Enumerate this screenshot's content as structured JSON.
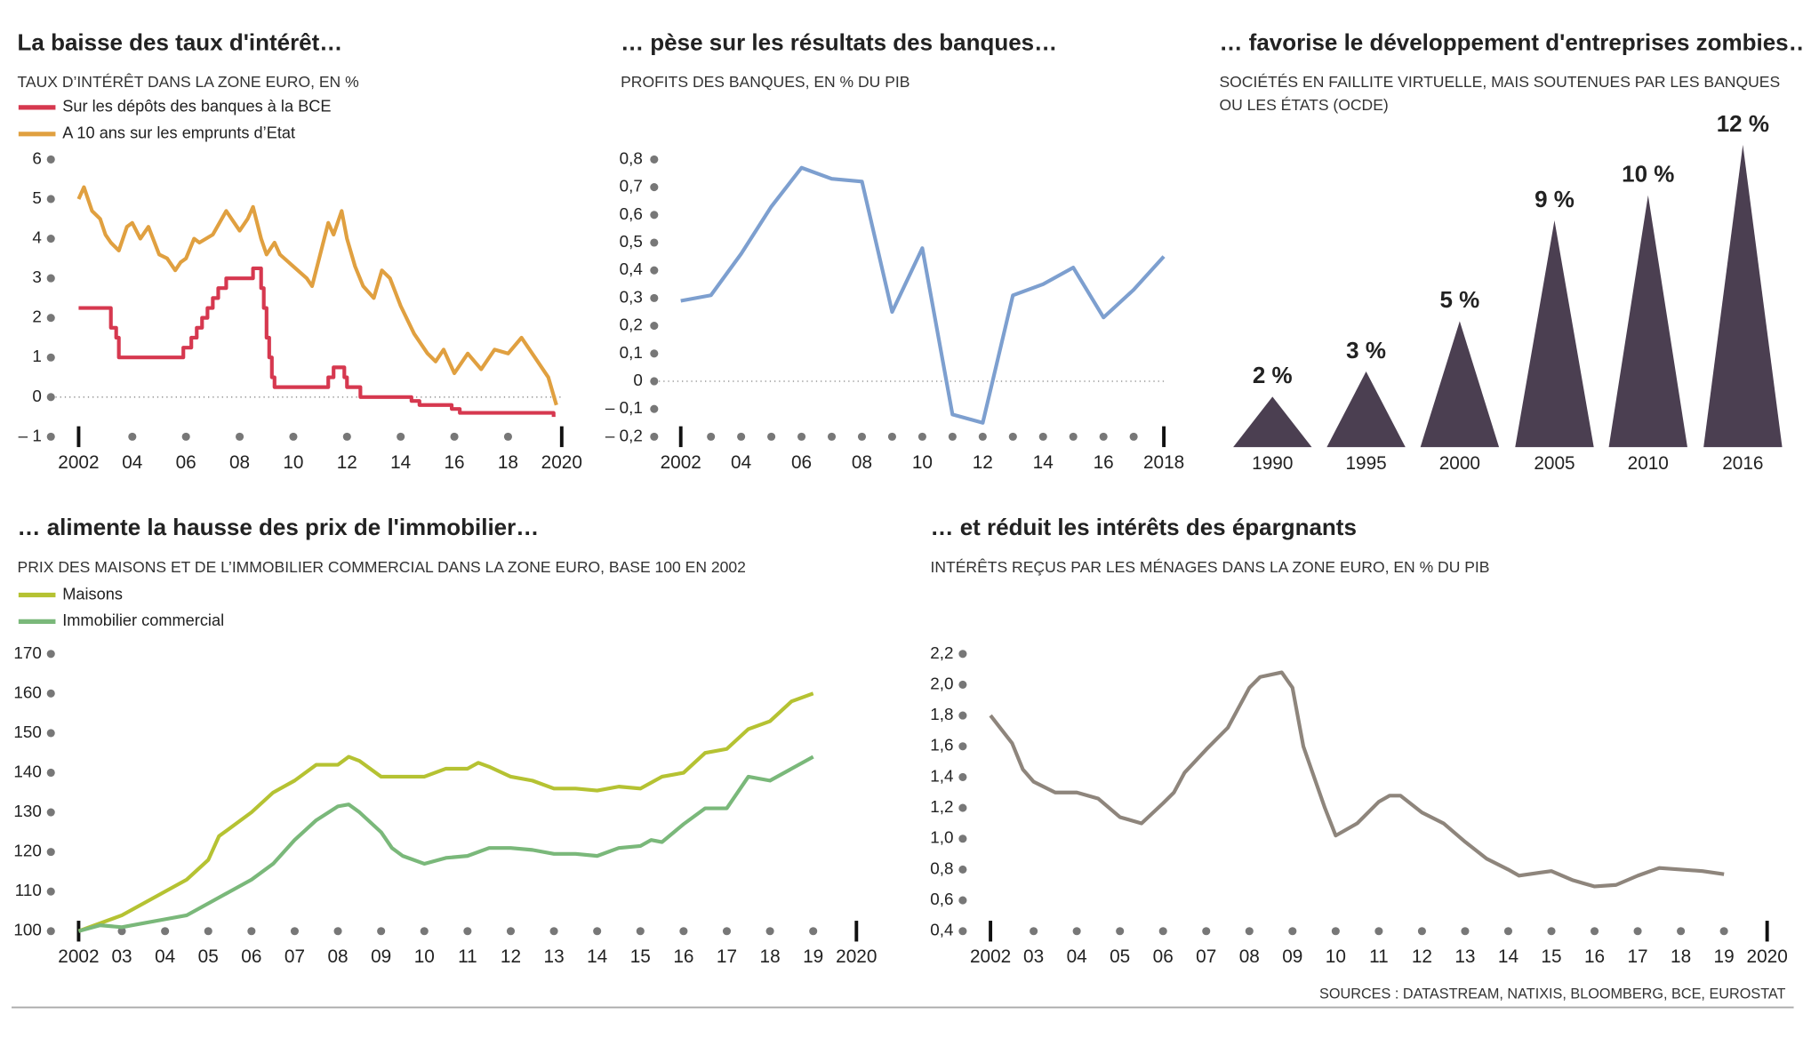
{
  "chart_data": [
    {
      "type": "line",
      "title": "La baisse des taux d'intérêt…",
      "subtitle": [
        "TAUX D’INTÉRÊT DANS LA ZONE EURO, EN %"
      ],
      "xlim": [
        2002,
        2020
      ],
      "ylim": [
        -1,
        6
      ],
      "zero_line": true,
      "xticks": [
        2002,
        {
          "value": 2004,
          "label": "04"
        },
        {
          "value": 2006,
          "label": "06"
        },
        {
          "value": 2008,
          "label": "08"
        },
        {
          "value": 2010,
          "label": "10"
        },
        {
          "value": 2012,
          "label": "12"
        },
        {
          "value": 2014,
          "label": "14"
        },
        {
          "value": 2016,
          "label": "16"
        },
        {
          "value": 2018,
          "label": "18"
        },
        2020
      ],
      "yticks": [
        {
          "value": -1,
          "label": "– 1"
        },
        0,
        1,
        2,
        3,
        4,
        5,
        6
      ],
      "series": [
        {
          "name": "Sur les dépôts des banques à la BCE",
          "color": "#d6384f",
          "x": [
            2002,
            2003,
            2003.2,
            2003.2,
            2003.4,
            2003.4,
            2003.5,
            2003.5,
            2005.9,
            2005.9,
            2006.2,
            2006.2,
            2006.4,
            2006.4,
            2006.6,
            2006.6,
            2006.8,
            2006.8,
            2007,
            2007,
            2007.2,
            2007.2,
            2007.5,
            2007.5,
            2008.5,
            2008.5,
            2008.8,
            2008.8,
            2008.9,
            2008.9,
            2009,
            2009,
            2009.1,
            2009.1,
            2009.2,
            2009.2,
            2009.3,
            2009.3,
            2011.3,
            2011.3,
            2011.5,
            2011.5,
            2011.9,
            2011.9,
            2012,
            2012,
            2012.5,
            2012.5,
            2014.4,
            2014.4,
            2014.7,
            2014.7,
            2015.9,
            2015.9,
            2016.2,
            2016.2,
            2019.7,
            2019.7
          ],
          "values": [
            2.25,
            2.25,
            2.25,
            1.75,
            1.75,
            1.5,
            1.5,
            1,
            1,
            1.25,
            1.25,
            1.5,
            1.5,
            1.75,
            1.75,
            2,
            2,
            2.25,
            2.25,
            2.5,
            2.5,
            2.75,
            2.75,
            3,
            3,
            3.25,
            3.25,
            2.75,
            2.75,
            2.25,
            2.25,
            1.5,
            1.5,
            1,
            1,
            0.5,
            0.5,
            0.25,
            0.25,
            0.5,
            0.5,
            0.75,
            0.75,
            0.5,
            0.5,
            0.25,
            0.25,
            0,
            0,
            -0.1,
            -0.1,
            -0.2,
            -0.2,
            -0.3,
            -0.3,
            -0.4,
            -0.4,
            -0.5
          ]
        },
        {
          "name": "A 10 ans sur les emprunts d’Etat",
          "color": "#e0a040",
          "x": [
            2002,
            2002.2,
            2002.5,
            2002.8,
            2003,
            2003.2,
            2003.5,
            2003.8,
            2004,
            2004.3,
            2004.6,
            2005,
            2005.3,
            2005.6,
            2005.8,
            2006,
            2006.3,
            2006.5,
            2007,
            2007.5,
            2008,
            2008.3,
            2008.5,
            2008.8,
            2009,
            2009.3,
            2009.5,
            2010,
            2010.5,
            2010.7,
            2011,
            2011.3,
            2011.5,
            2011.8,
            2012,
            2012.3,
            2012.6,
            2013,
            2013.3,
            2013.6,
            2014,
            2014.5,
            2015,
            2015.3,
            2015.6,
            2016,
            2016.5,
            2017,
            2017.5,
            2018,
            2018.5,
            2019,
            2019.5,
            2019.8
          ],
          "values": [
            5.0,
            5.3,
            4.7,
            4.5,
            4.1,
            3.9,
            3.7,
            4.3,
            4.4,
            4.0,
            4.3,
            3.6,
            3.5,
            3.2,
            3.4,
            3.5,
            4.0,
            3.9,
            4.1,
            4.7,
            4.2,
            4.5,
            4.8,
            4.0,
            3.6,
            3.9,
            3.6,
            3.3,
            3.0,
            2.8,
            3.6,
            4.4,
            4.1,
            4.7,
            4.0,
            3.3,
            2.8,
            2.5,
            3.2,
            3.0,
            2.3,
            1.6,
            1.1,
            0.9,
            1.2,
            0.6,
            1.1,
            0.7,
            1.2,
            1.1,
            1.5,
            1.0,
            0.5,
            -0.2
          ]
        }
      ]
    },
    {
      "type": "line",
      "title": "… pèse sur les résultats des banques…",
      "subtitle": [
        "PROFITS DES BANQUES, EN % DU PIB"
      ],
      "xlim": [
        2002,
        2018
      ],
      "ylim": [
        -0.2,
        0.8
      ],
      "zero_line": true,
      "xticks": [
        2002,
        {
          "value": 2004,
          "label": "04"
        },
        {
          "value": 2006,
          "label": "06"
        },
        {
          "value": 2008,
          "label": "08"
        },
        {
          "value": 2010,
          "label": "10"
        },
        {
          "value": 2012,
          "label": "12"
        },
        {
          "value": 2014,
          "label": "14"
        },
        {
          "value": 2016,
          "label": "16"
        },
        2018
      ],
      "xminorticks": [
        2003,
        2005,
        2007,
        2009,
        2011,
        2013,
        2015,
        2017
      ],
      "yticks": [
        {
          "value": -0.2,
          "label": "– 0,2"
        },
        {
          "value": -0.1,
          "label": "– 0,1"
        },
        0,
        {
          "value": 0.1,
          "label": "0,1"
        },
        {
          "value": 0.2,
          "label": "0,2"
        },
        {
          "value": 0.3,
          "label": "0,3"
        },
        {
          "value": 0.4,
          "label": "0,4"
        },
        {
          "value": 0.5,
          "label": "0,5"
        },
        {
          "value": 0.6,
          "label": "0,6"
        },
        {
          "value": 0.7,
          "label": "0,7"
        },
        {
          "value": 0.8,
          "label": "0,8"
        }
      ],
      "series": [
        {
          "name": null,
          "color": "#7d9fcf",
          "x": [
            2002,
            2003,
            2004,
            2005,
            2006,
            2007,
            2008,
            2009,
            2010,
            2011,
            2012,
            2013,
            2014,
            2015,
            2016,
            2017,
            2018
          ],
          "values": [
            0.29,
            0.31,
            0.46,
            0.63,
            0.77,
            0.73,
            0.72,
            0.25,
            0.48,
            -0.12,
            -0.15,
            0.31,
            0.35,
            0.41,
            0.23,
            0.33,
            0.45
          ]
        }
      ]
    },
    {
      "type": "triangle",
      "title": "… favorise le développement d'entreprises zombies…",
      "subtitle": [
        "SOCIÉTÉS EN FAILLITE VIRTUELLE, MAIS SOUTENUES PAR LES BANQUES",
        "OU LES ÉTATS (OCDE)"
      ],
      "categories": [
        "1990",
        "1995",
        "2000",
        "2005",
        "2010",
        "2016"
      ],
      "values": [
        2,
        3,
        5,
        9,
        10,
        12
      ],
      "value_labels": [
        "2 %",
        "3 %",
        "5 %",
        "9 %",
        "10 %",
        "12 %"
      ],
      "color": "#4b3f51"
    },
    {
      "type": "line",
      "title": "… alimente la hausse des prix de l'immobilier…",
      "subtitle": [
        "PRIX DES MAISONS ET DE L’IMMOBILIER COMMERCIAL DANS LA ZONE EURO, BASE 100 EN 2002"
      ],
      "xlim": [
        2002,
        2020
      ],
      "ylim": [
        100,
        170
      ],
      "xticks": [
        2002,
        {
          "value": 2003,
          "label": "03"
        },
        {
          "value": 2004,
          "label": "04"
        },
        {
          "value": 2005,
          "label": "05"
        },
        {
          "value": 2006,
          "label": "06"
        },
        {
          "value": 2007,
          "label": "07"
        },
        {
          "value": 2008,
          "label": "08"
        },
        {
          "value": 2009,
          "label": "09"
        },
        {
          "value": 2010,
          "label": "10"
        },
        {
          "value": 2011,
          "label": "11"
        },
        {
          "value": 2012,
          "label": "12"
        },
        {
          "value": 2013,
          "label": "13"
        },
        {
          "value": 2014,
          "label": "14"
        },
        {
          "value": 2015,
          "label": "15"
        },
        {
          "value": 2016,
          "label": "16"
        },
        {
          "value": 2017,
          "label": "17"
        },
        {
          "value": 2018,
          "label": "18"
        },
        {
          "value": 2019,
          "label": "19"
        },
        2020
      ],
      "yticks": [
        100,
        110,
        120,
        130,
        140,
        150,
        160,
        170
      ],
      "series": [
        {
          "name": "Maisons",
          "color": "#b5c232",
          "x": [
            2002,
            2002.5,
            2003,
            2003.5,
            2004,
            2004.5,
            2005,
            2005.25,
            2005.5,
            2006,
            2006.5,
            2007,
            2007.5,
            2008,
            2008.25,
            2008.5,
            2009,
            2009.5,
            2010,
            2010.5,
            2011,
            2011.25,
            2011.5,
            2012,
            2012.5,
            2013,
            2013.5,
            2014,
            2014.5,
            2015,
            2015.5,
            2016,
            2016.5,
            2017,
            2017.5,
            2018,
            2018.5,
            2019
          ],
          "values": [
            100,
            102,
            104,
            107,
            110,
            113,
            118,
            124,
            126,
            130,
            135,
            138,
            142,
            142,
            144,
            143,
            139,
            139,
            139,
            141,
            141,
            142.5,
            141.5,
            139,
            138,
            136,
            136,
            135.5,
            136.5,
            136,
            139,
            140,
            145,
            146,
            151,
            153,
            158,
            160
          ]
        },
        {
          "name": "Immobilier commercial",
          "color": "#7ab87a",
          "x": [
            2002,
            2002.5,
            2003,
            2003.5,
            2004,
            2004.5,
            2005,
            2005.5,
            2006,
            2006.5,
            2007,
            2007.5,
            2008,
            2008.25,
            2008.5,
            2009,
            2009.25,
            2009.5,
            2010,
            2010.5,
            2011,
            2011.5,
            2012,
            2012.5,
            2013,
            2013.5,
            2014,
            2014.5,
            2015,
            2015.25,
            2015.5,
            2016,
            2016.5,
            2017,
            2017.5,
            2018,
            2018.5,
            2019
          ],
          "values": [
            100,
            101.5,
            101,
            102,
            103,
            104,
            107,
            110,
            113,
            117,
            123,
            128,
            131.5,
            132,
            130,
            125,
            121,
            119,
            117,
            118.5,
            119,
            121,
            121,
            120.5,
            119.5,
            119.5,
            119,
            121,
            121.5,
            123,
            122.5,
            127,
            131,
            131,
            139,
            138,
            141,
            144
          ]
        }
      ]
    },
    {
      "type": "line",
      "title": "… et réduit les intérêts des épargnants",
      "subtitle": [
        "INTÉRÊTS REÇUS PAR LES MÉNAGES DANS LA ZONE EURO, EN % DU PIB"
      ],
      "xlim": [
        2002,
        2020
      ],
      "ylim": [
        0.4,
        2.2
      ],
      "xticks": [
        2002,
        {
          "value": 2003,
          "label": "03"
        },
        {
          "value": 2004,
          "label": "04"
        },
        {
          "value": 2005,
          "label": "05"
        },
        {
          "value": 2006,
          "label": "06"
        },
        {
          "value": 2007,
          "label": "07"
        },
        {
          "value": 2008,
          "label": "08"
        },
        {
          "value": 2009,
          "label": "09"
        },
        {
          "value": 2010,
          "label": "10"
        },
        {
          "value": 2011,
          "label": "11"
        },
        {
          "value": 2012,
          "label": "12"
        },
        {
          "value": 2013,
          "label": "13"
        },
        {
          "value": 2014,
          "label": "14"
        },
        {
          "value": 2015,
          "label": "15"
        },
        {
          "value": 2016,
          "label": "16"
        },
        {
          "value": 2017,
          "label": "17"
        },
        {
          "value": 2018,
          "label": "18"
        },
        {
          "value": 2019,
          "label": "19"
        },
        2020
      ],
      "yticks": [
        {
          "value": 0.4,
          "label": "0,4"
        },
        {
          "value": 0.6,
          "label": "0,6"
        },
        {
          "value": 0.8,
          "label": "0,8"
        },
        {
          "value": 1.0,
          "label": "1,0"
        },
        {
          "value": 1.2,
          "label": "1,2"
        },
        {
          "value": 1.4,
          "label": "1,4"
        },
        {
          "value": 1.6,
          "label": "1,6"
        },
        {
          "value": 1.8,
          "label": "1,8"
        },
        {
          "value": 2.0,
          "label": "2,0"
        },
        {
          "value": 2.2,
          "label": "2,2"
        }
      ],
      "series": [
        {
          "name": null,
          "color": "#8e857c",
          "x": [
            2002,
            2002.5,
            2002.75,
            2003,
            2003.5,
            2004,
            2004.5,
            2005,
            2005.5,
            2006,
            2006.25,
            2006.5,
            2007,
            2007.5,
            2008,
            2008.25,
            2008.75,
            2009,
            2009.25,
            2009.75,
            2010,
            2010.5,
            2011,
            2011.25,
            2011.5,
            2012,
            2012.5,
            2013,
            2013.5,
            2014,
            2014.25,
            2014.75,
            2015,
            2015.5,
            2016,
            2016.5,
            2017,
            2017.5,
            2018,
            2018.5,
            2019
          ],
          "values": [
            1.8,
            1.62,
            1.45,
            1.37,
            1.3,
            1.3,
            1.26,
            1.14,
            1.1,
            1.23,
            1.3,
            1.43,
            1.58,
            1.72,
            1.98,
            2.05,
            2.08,
            1.98,
            1.6,
            1.2,
            1.02,
            1.1,
            1.24,
            1.28,
            1.28,
            1.17,
            1.1,
            0.98,
            0.87,
            0.8,
            0.76,
            0.78,
            0.79,
            0.73,
            0.69,
            0.7,
            0.76,
            0.81,
            0.8,
            0.79,
            0.77
          ]
        }
      ]
    }
  ],
  "sources": "SOURCES : DATASTREAM, NATIXIS, BLOOMBERG, BCE, EUROSTAT"
}
